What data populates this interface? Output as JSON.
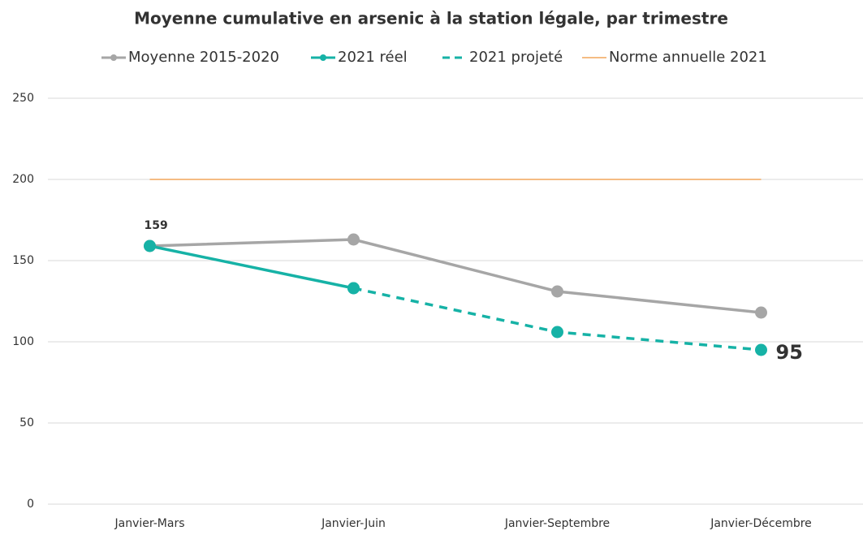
{
  "chart_data": {
    "type": "line",
    "title": "Moyenne cumulative en arsenic à la station légale, par trimestre",
    "categories": [
      "Janvier-Mars",
      "Janvier-Juin",
      "Janvier-Septembre",
      "Janvier-Décembre"
    ],
    "series": [
      {
        "name": "Moyenne 2015-2020",
        "color": "#a6a6a6",
        "values": [
          159,
          163,
          131,
          118
        ],
        "markers": true,
        "dash": false
      },
      {
        "name": "2021 réel",
        "color": "#16b2a6",
        "values": [
          159,
          133,
          null,
          null
        ],
        "markers": true,
        "dash": false,
        "labeled": [
          0
        ]
      },
      {
        "name": "2021 projeté",
        "color": "#16b2a6",
        "values": [
          null,
          133,
          106,
          95
        ],
        "markers": true,
        "dash": true,
        "labeled": [
          3
        ]
      },
      {
        "name": "Norme annuelle 2021",
        "color": "#f2a65a",
        "values": [
          200,
          200,
          200,
          200
        ],
        "markers": false,
        "dash": false
      }
    ],
    "ylim": [
      0,
      250
    ],
    "yticks": [
      0,
      50,
      100,
      150,
      200,
      250
    ],
    "grid": true,
    "legend": "top"
  }
}
